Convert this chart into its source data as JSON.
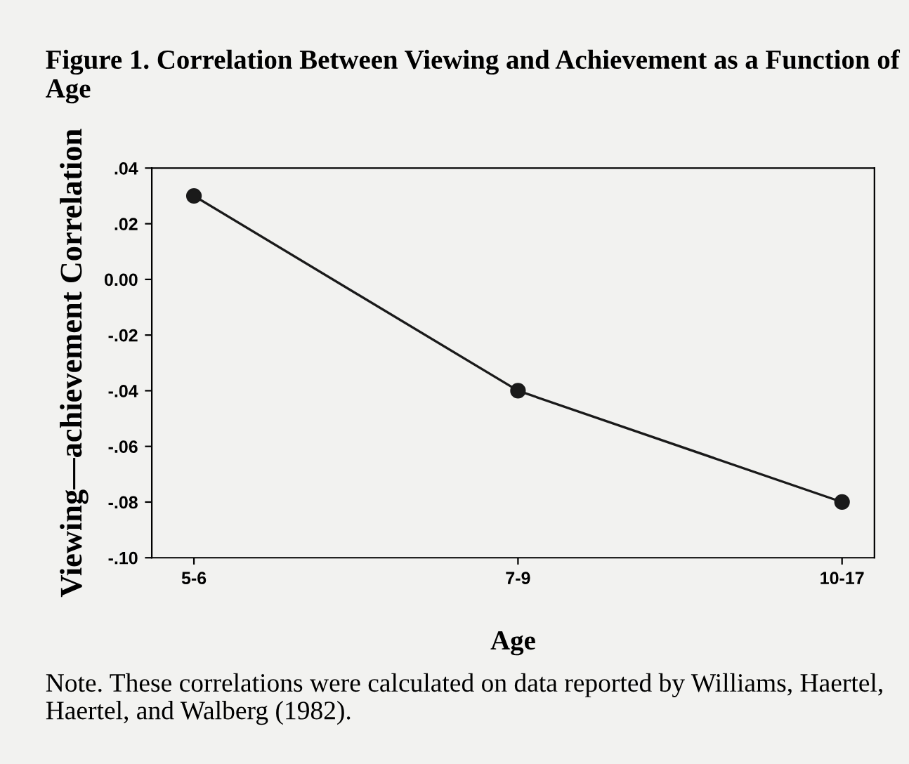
{
  "chart_data": {
    "type": "line",
    "title": "Figure 1. Correlation Between Viewing and Achievement as a Function of Age",
    "xlabel": "Age",
    "ylabel": "Viewing—achievement Correlation",
    "categories": [
      "5-6",
      "7-9",
      "10-17"
    ],
    "series": [
      {
        "color": "#1a1a1a",
        "values": [
          0.03,
          -0.04,
          -0.08
        ]
      }
    ],
    "ylim": [
      -0.1,
      0.04
    ],
    "yticks": [
      {
        "value": 0.04,
        "label": ".04"
      },
      {
        "value": 0.02,
        "label": ".02"
      },
      {
        "value": 0.0,
        "label": "0.00"
      },
      {
        "value": -0.02,
        "label": "-.02"
      },
      {
        "value": -0.04,
        "label": "-.04"
      },
      {
        "value": -0.06,
        "label": "-.06"
      },
      {
        "value": -0.08,
        "label": "-.08"
      },
      {
        "value": -0.1,
        "label": "-.10"
      }
    ],
    "grid": false,
    "legend": false,
    "marker": "circle",
    "line_style": "solid",
    "annotations": [
      "Note. These correlations were calculated on data reported by Williams, Haertel, Haertel, and Walberg (1982)."
    ]
  }
}
